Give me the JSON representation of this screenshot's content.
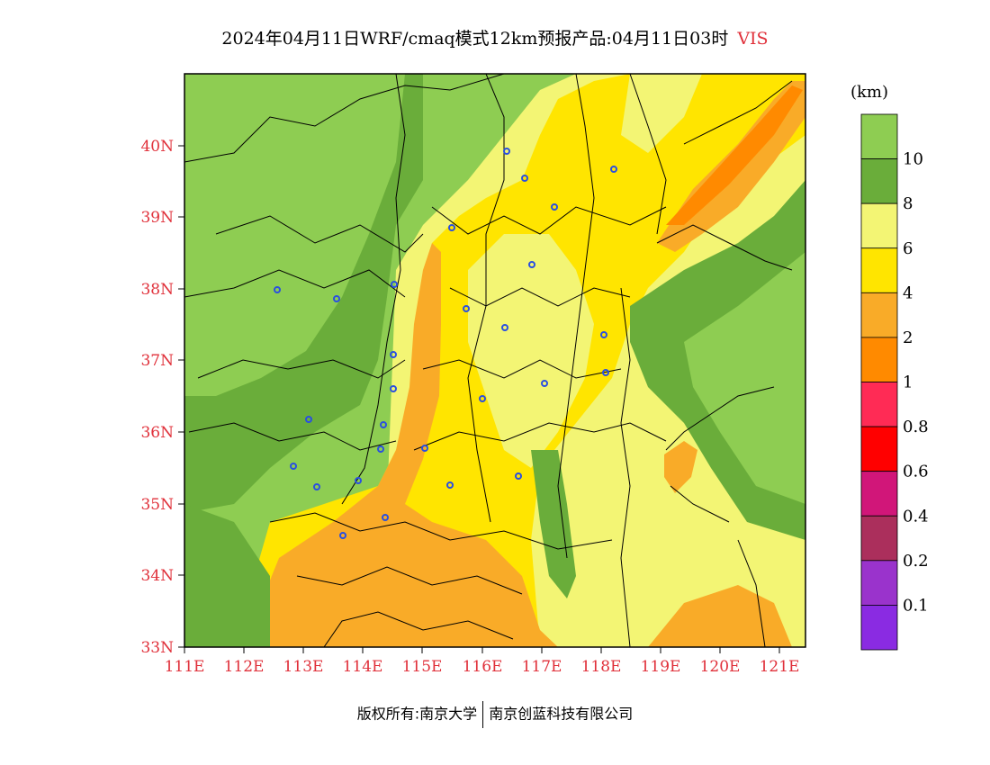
{
  "title": {
    "main": "2024年04月11日WRF/cmaq模式12km预报产品:04月11日03时",
    "variable": "VIS"
  },
  "map": {
    "lat_labels": [
      "40N",
      "39N",
      "38N",
      "37N",
      "36N",
      "35N",
      "34N",
      "33N"
    ],
    "lon_labels": [
      "111E",
      "112E",
      "113E",
      "114E",
      "115E",
      "116E",
      "117E",
      "118E",
      "119E",
      "120E",
      "121E"
    ],
    "lon_range": [
      111,
      121.5
    ],
    "lat_range": [
      33,
      41
    ]
  },
  "colorbar": {
    "unit": "(km)",
    "levels": [
      {
        "label": "",
        "color": "#8ecd52"
      },
      {
        "label": "10",
        "color": "#6aad3a"
      },
      {
        "label": "8",
        "color": "#f3f574"
      },
      {
        "label": "6",
        "color": "#ffe500"
      },
      {
        "label": "4",
        "color": "#f9ab28"
      },
      {
        "label": "2",
        "color": "#ff8a00"
      },
      {
        "label": "1",
        "color": "#ff2b55"
      },
      {
        "label": "0.8",
        "color": "#ff0000"
      },
      {
        "label": "0.6",
        "color": "#d11679"
      },
      {
        "label": "0.4",
        "color": "#ab2f5c"
      },
      {
        "label": "0.2",
        "color": "#9a33cc"
      },
      {
        "label": "0.1",
        "color": "#8a2be2"
      }
    ]
  },
  "footer": {
    "left": "版权所有:南京大学",
    "right": "南京创蓝科技有限公司"
  }
}
